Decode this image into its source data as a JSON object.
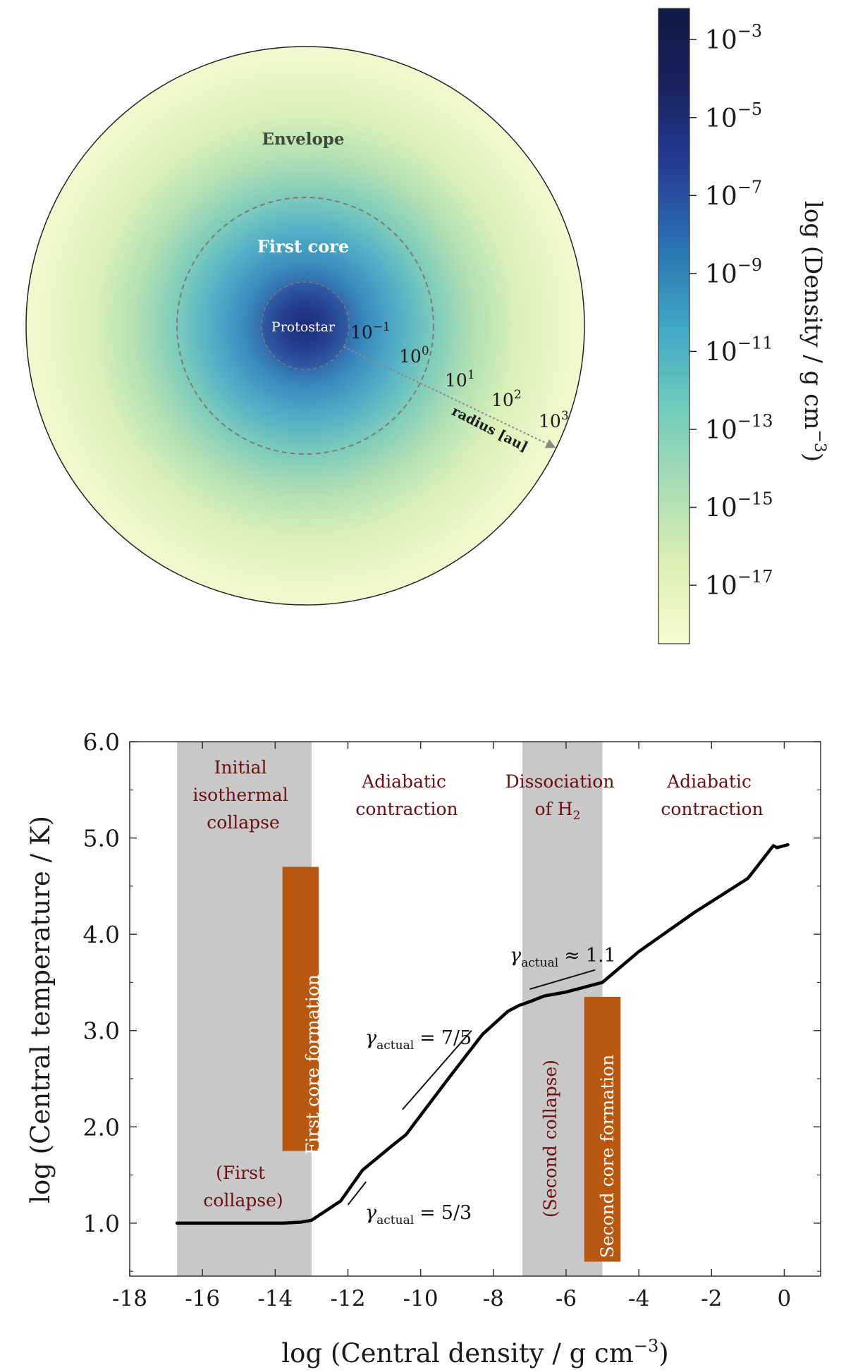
{
  "chart_data": [
    {
      "type": "other",
      "description_kind": "radial density schematic with colorbar",
      "regions": [
        "Envelope",
        "First core",
        "Protostar"
      ],
      "radius_label": "radius [au]",
      "radius_ticks": [
        {
          "base": "10",
          "exp": "−1",
          "value_au": 0.1
        },
        {
          "base": "10",
          "exp": "0",
          "value_au": 1
        },
        {
          "base": "10",
          "exp": "1",
          "value_au": 10
        },
        {
          "base": "10",
          "exp": "2",
          "value_au": 100
        },
        {
          "base": "10",
          "exp": "3",
          "value_au": 1000
        }
      ],
      "colorbar": {
        "label_main": "log (Density / g cm",
        "label_exp": "−3",
        "label_close": ")",
        "range_log": [
          -18.5,
          -2.2
        ],
        "ticks": [
          {
            "base": "10",
            "exp": "−3",
            "value": -3
          },
          {
            "base": "10",
            "exp": "−5",
            "value": -5
          },
          {
            "base": "10",
            "exp": "−7",
            "value": -7
          },
          {
            "base": "10",
            "exp": "−9",
            "value": -9
          },
          {
            "base": "10",
            "exp": "−11",
            "value": -11
          },
          {
            "base": "10",
            "exp": "−13",
            "value": -13
          },
          {
            "base": "10",
            "exp": "−15",
            "value": -15
          },
          {
            "base": "10",
            "exp": "−17",
            "value": -17
          }
        ],
        "colors": [
          "#f6fbd0",
          "#dcf0b2",
          "#a9dcb4",
          "#6ecbbd",
          "#3fa6c5",
          "#2b74b1",
          "#253d96",
          "#1a2360",
          "#0f1a44"
        ]
      }
    },
    {
      "type": "line",
      "xlabel_main": "log (Central density / g cm",
      "xlabel_exp": "−3",
      "xlabel_close": ")",
      "ylabel": "log (Central temperature / K)",
      "xlim": [
        -18,
        1
      ],
      "ylim": [
        0.45,
        6.0
      ],
      "xticks": [
        {
          "label": "-18",
          "value": -18
        },
        {
          "label": "-16",
          "value": -16
        },
        {
          "label": "-14",
          "value": -14
        },
        {
          "label": "-12",
          "value": -12
        },
        {
          "label": "-10",
          "value": -10
        },
        {
          "label": "-8",
          "value": -8
        },
        {
          "label": "-6",
          "value": -6
        },
        {
          "label": "-4",
          "value": -4
        },
        {
          "label": "-2",
          "value": -2
        },
        {
          "label": "0",
          "value": 0
        }
      ],
      "yticks": [
        {
          "label": "1.0",
          "value": 1.0
        },
        {
          "label": "2.0",
          "value": 2.0
        },
        {
          "label": "3.0",
          "value": 3.0
        },
        {
          "label": "4.0",
          "value": 4.0
        },
        {
          "label": "5.0",
          "value": 5.0
        },
        {
          "label": "6.0",
          "value": 6.0
        }
      ],
      "series": [
        {
          "name": "central temperature",
          "x": [
            -16.7,
            -15.0,
            -13.8,
            -13.3,
            -13.0,
            -12.2,
            -11.6,
            -10.8,
            -10.4,
            -9.2,
            -8.3,
            -7.6,
            -7.3,
            -7.0,
            -6.6,
            -6.0,
            -5.0,
            -4.0,
            -2.5,
            -1.0,
            -0.3,
            -0.2,
            -0.1,
            0.1
          ],
          "y": [
            1.0,
            1.0,
            1.0,
            1.01,
            1.03,
            1.23,
            1.55,
            1.8,
            1.92,
            2.52,
            2.96,
            3.2,
            3.26,
            3.3,
            3.36,
            3.4,
            3.5,
            3.82,
            4.22,
            4.58,
            4.92,
            4.9,
            4.91,
            4.93
          ]
        }
      ],
      "shaded_bands": [
        {
          "x0": -16.7,
          "x1": -13.0,
          "label_lines": [
            "Initial",
            "isothermal",
            "collapse"
          ]
        },
        {
          "x0": -7.2,
          "x1": -5.0,
          "label_lines": [
            "Dissociation",
            "of H"
          ],
          "label_sub": "2"
        }
      ],
      "annotations": [
        {
          "text_lines": [
            "Adiabatic",
            "contraction"
          ],
          "x": -10.9,
          "y": 5.6
        },
        {
          "text_lines": [
            "Adiabatic",
            "contraction"
          ],
          "x": -2.6,
          "y": 5.6
        },
        {
          "text_lines": [
            "(First",
            "collapse)"
          ],
          "x": -14.8,
          "y": 1.5
        },
        {
          "text_lines": [
            "(Second collapse)"
          ],
          "x": -6.0,
          "y": 2.0,
          "rotated": true
        }
      ],
      "boxes": [
        {
          "text": "First core formation",
          "x0": -13.8,
          "x1": -12.8,
          "y0": 1.75,
          "y1": 4.7
        },
        {
          "text": "Second core formation",
          "x0": -5.5,
          "x1": -4.5,
          "y0": 0.6,
          "y1": 3.35
        }
      ],
      "gamma_annotations": [
        {
          "gamma": "γ",
          "sub": "actual",
          "rel": "=",
          "value": "7/5",
          "line": [
            [
              -10.5,
              2.18
            ],
            [
              -8.6,
              3.0
            ]
          ]
        },
        {
          "gamma": "γ",
          "sub": "actual",
          "rel": "=",
          "value": "5/3",
          "line": [
            [
              -12.0,
              1.19
            ],
            [
              -11.5,
              1.43
            ]
          ]
        },
        {
          "gamma": "γ",
          "sub": "actual",
          "rel": "≈",
          "value": "1.1",
          "line": [
            [
              -7.0,
              3.43
            ],
            [
              -5.2,
              3.63
            ]
          ]
        }
      ],
      "colors": {
        "band": "#c8c8c8",
        "box": "#b85810",
        "annotation_text": "#6b0f0f",
        "line": "#000000"
      }
    }
  ]
}
